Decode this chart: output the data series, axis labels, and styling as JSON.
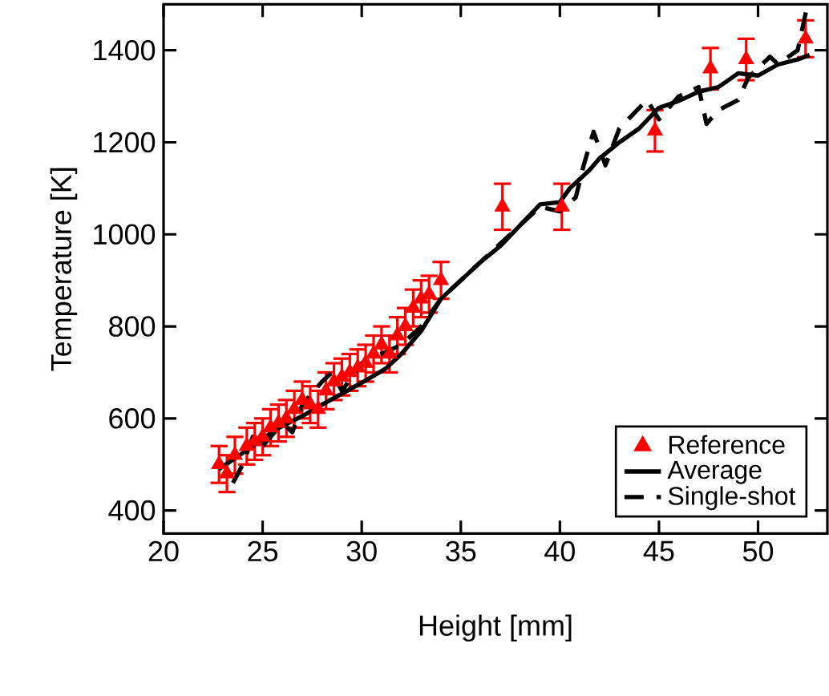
{
  "chart_data": {
    "type": "line",
    "xlabel": "Height [mm]",
    "ylabel": "Temperature [K]",
    "xlim": [
      20,
      53.5
    ],
    "ylim": [
      350,
      1500
    ],
    "xticks": [
      20,
      25,
      30,
      35,
      40,
      45,
      50
    ],
    "yticks": [
      400,
      600,
      800,
      1000,
      1200,
      1400
    ],
    "grid": false,
    "legend": "bottom right",
    "series": [
      {
        "name": "Reference",
        "type": "scatter",
        "marker": "triangle",
        "color": "#ff0000",
        "x": [
          22.8,
          23.2,
          23.6,
          24.2,
          24.6,
          25.0,
          25.4,
          25.8,
          26.2,
          26.6,
          27.0,
          27.4,
          27.8,
          28.2,
          28.6,
          29.0,
          29.4,
          29.8,
          30.2,
          30.6,
          31.0,
          31.4,
          31.8,
          32.2,
          32.6,
          33.0,
          33.4,
          34.0,
          37.1,
          40.1,
          44.8,
          47.6,
          49.4,
          52.4
        ],
        "values": [
          500,
          480,
          520,
          540,
          550,
          560,
          580,
          590,
          600,
          620,
          640,
          630,
          620,
          660,
          680,
          690,
          700,
          710,
          720,
          740,
          760,
          740,
          780,
          800,
          840,
          860,
          870,
          900,
          1060,
          1060,
          1225,
          1360,
          1380,
          1425
        ],
        "errors": [
          40,
          40,
          40,
          40,
          40,
          40,
          40,
          40,
          40,
          40,
          40,
          40,
          40,
          40,
          40,
          40,
          40,
          40,
          40,
          40,
          40,
          40,
          40,
          40,
          40,
          40,
          40,
          40,
          50,
          50,
          45,
          45,
          45,
          40
        ]
      },
      {
        "name": "Average",
        "line_style": "solid",
        "color": "#000000",
        "x": [
          22.8,
          24,
          25,
          25.7,
          27,
          28,
          29.3,
          30.3,
          31.2,
          32,
          33,
          34,
          35,
          36,
          37,
          38,
          39,
          40,
          40.5,
          41.5,
          42,
          43,
          44,
          45,
          46,
          47,
          48,
          49,
          50,
          51,
          52,
          52.6
        ],
        "values": [
          490,
          525,
          555,
          577,
          605,
          630,
          661,
          685,
          708,
          740,
          790,
          860,
          900,
          940,
          975,
          1020,
          1065,
          1070,
          1100,
          1140,
          1165,
          1200,
          1230,
          1275,
          1290,
          1310,
          1320,
          1350,
          1345,
          1369,
          1380,
          1390
        ]
      },
      {
        "name": "Single-shot",
        "line_style": "dashed",
        "color": "#000000",
        "x": [
          23.5,
          24,
          24.5,
          25,
          26,
          26.5,
          27,
          28,
          28.5,
          29,
          30,
          31,
          32,
          33,
          34,
          35,
          36,
          37,
          38,
          39,
          40,
          40.8,
          41.2,
          41.7,
          42.3,
          43,
          44.4,
          45,
          46,
          47,
          47.4,
          48,
          49,
          49.5,
          50.6,
          51,
          52,
          52.5
        ],
        "values": [
          460,
          500,
          560,
          540,
          590,
          570,
          630,
          680,
          700,
          660,
          720,
          740,
          760,
          800,
          860,
          900,
          940,
          980,
          1020,
          1060,
          1050,
          1080,
          1150,
          1223,
          1150,
          1230,
          1292,
          1250,
          1300,
          1320,
          1240,
          1270,
          1292,
          1340,
          1386,
          1370,
          1400,
          1500
        ]
      }
    ]
  }
}
